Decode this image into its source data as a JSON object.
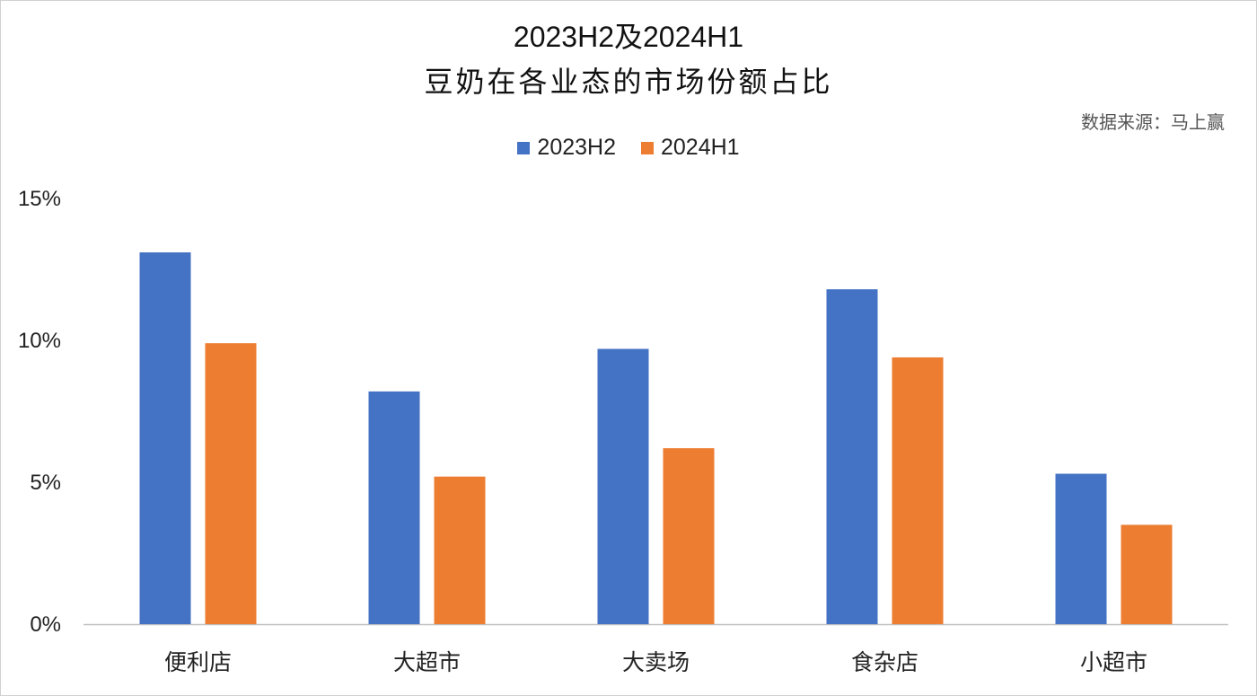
{
  "chart_data": {
    "type": "bar",
    "title": "2023H2及2024H1",
    "subtitle": "豆奶在各业态的市场份额占比",
    "source": "数据来源：马上赢",
    "categories": [
      "便利店",
      "大超市",
      "大卖场",
      "食杂店",
      "小超市"
    ],
    "series": [
      {
        "name": "2023H2",
        "color": "#4472C4",
        "values": [
          13.1,
          8.2,
          9.7,
          11.8,
          5.3
        ]
      },
      {
        "name": "2024H1",
        "color": "#ED7D31",
        "values": [
          9.9,
          5.2,
          6.2,
          9.4,
          3.5
        ]
      }
    ],
    "y_ticks": [
      "0%",
      "5%",
      "10%",
      "15%"
    ],
    "ylim": [
      0,
      15
    ],
    "xlabel": "",
    "ylabel": "",
    "grid": false,
    "legend_position": "top"
  }
}
